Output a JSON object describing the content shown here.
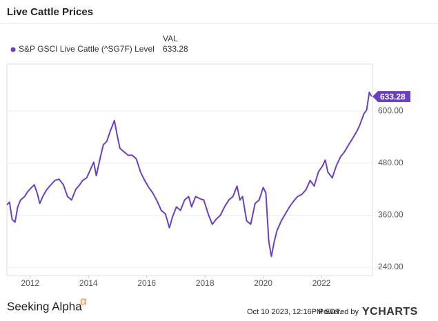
{
  "chart_data": {
    "type": "line",
    "title": "Live Cattle Prices",
    "legend_header": "VAL",
    "x": [
      2011.2,
      2011.29,
      2011.38,
      2011.48,
      2011.57,
      2011.67,
      2011.81,
      2011.91,
      2012.05,
      2012.14,
      2012.24,
      2012.33,
      2012.43,
      2012.57,
      2012.71,
      2012.85,
      2012.99,
      2013.14,
      2013.28,
      2013.42,
      2013.56,
      2013.7,
      2013.8,
      2013.94,
      2014.08,
      2014.18,
      2014.27,
      2014.41,
      2014.51,
      2014.63,
      2014.75,
      2014.89,
      2014.98,
      2015.08,
      2015.22,
      2015.36,
      2015.5,
      2015.64,
      2015.79,
      2015.93,
      2016.07,
      2016.21,
      2016.36,
      2016.5,
      2016.64,
      2016.78,
      2016.88,
      2017.02,
      2017.16,
      2017.3,
      2017.44,
      2017.54,
      2017.68,
      2017.82,
      2017.96,
      2018.11,
      2018.25,
      2018.39,
      2018.53,
      2018.67,
      2018.82,
      2018.96,
      2019.1,
      2019.2,
      2019.29,
      2019.43,
      2019.57,
      2019.72,
      2019.86,
      2020.0,
      2020.09,
      2020.19,
      2020.28,
      2020.38,
      2020.47,
      2020.62,
      2020.76,
      2020.9,
      2021.04,
      2021.18,
      2021.33,
      2021.47,
      2021.61,
      2021.75,
      2021.89,
      2022.04,
      2022.13,
      2022.22,
      2022.37,
      2022.51,
      2022.65,
      2022.79,
      2022.93,
      2023.08,
      2023.22,
      2023.31,
      2023.46,
      2023.55,
      2023.64,
      2023.72
    ],
    "series": [
      {
        "name": "S&P GSCI Live Cattle (^SG7F) Level",
        "color": "#6b3fc4",
        "values": [
          384,
          390,
          350,
          344,
          379,
          395,
          403,
          414,
          424,
          430,
          411,
          387,
          403,
          419,
          430,
          440,
          443,
          430,
          403,
          395,
          419,
          430,
          440,
          446,
          467,
          482,
          451,
          494,
          522,
          530,
          554,
          578,
          546,
          514,
          506,
          498,
          498,
          490,
          459,
          440,
          424,
          411,
          392,
          371,
          363,
          331,
          355,
          379,
          371,
          395,
          403,
          379,
          403,
          398,
          395,
          363,
          339,
          351,
          360,
          379,
          395,
          403,
          427,
          395,
          403,
          347,
          339,
          387,
          395,
          424,
          411,
          300,
          265,
          300,
          324,
          347,
          363,
          379,
          392,
          403,
          408,
          419,
          440,
          427,
          459,
          474,
          487,
          459,
          446,
          474,
          494,
          506,
          522,
          538,
          554,
          567,
          594,
          602,
          643,
          633.28
        ]
      }
    ],
    "xlim": [
      2011.2,
      2023.75
    ],
    "xticks": [
      2012,
      2014,
      2016,
      2018,
      2020,
      2022
    ],
    "ylim": [
      221,
      708
    ],
    "yticks": [
      {
        "value": 240,
        "label": "240.00"
      },
      {
        "value": 360,
        "label": "360.00"
      },
      {
        "value": 480,
        "label": "480.00"
      },
      {
        "value": 600,
        "label": "600.00"
      }
    ],
    "grid": true,
    "footer": {
      "brand": "Seeking Alpha",
      "brand_symbol": "α",
      "timestamp": "Oct 10 2023, 12:16PM EDT.",
      "powered": "Powered by",
      "provider": "YCHARTS"
    }
  }
}
